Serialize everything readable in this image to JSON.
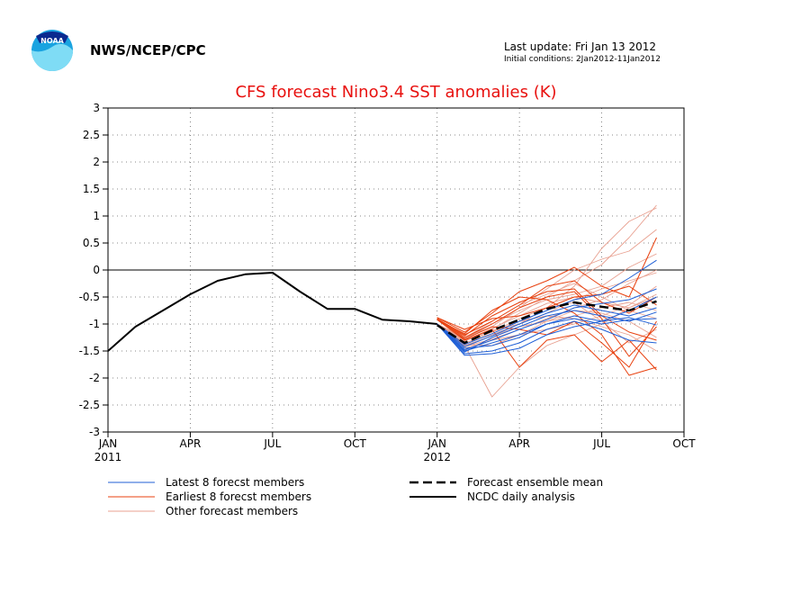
{
  "header": {
    "org": "NWS/NCEP/CPC",
    "last_update": "Last update: Fri Jan 13 2012",
    "initial_conditions": "Initial conditions: 2Jan2012-11Jan2012",
    "logo_text": "NOAA"
  },
  "chart_data": {
    "type": "line",
    "title": "CFS forecast Nino3.4 SST anomalies (K)",
    "xlabel": "",
    "ylabel": "",
    "ylim": [
      -3,
      3
    ],
    "xlim": [
      "2011-01",
      "2012-10"
    ],
    "y_ticks": [
      "3",
      "2.5",
      "2",
      "1.5",
      "1",
      "0.5",
      "0",
      "-0.5",
      "-1",
      "-1.5",
      "-2",
      "-2.5",
      "-3"
    ],
    "y_tick_values": [
      3,
      2.5,
      2,
      1.5,
      1,
      0.5,
      0,
      -0.5,
      -1,
      -1.5,
      -2,
      -2.5,
      -3
    ],
    "x_ticks": [
      {
        "label": "JAN",
        "year": "2011",
        "month": "2011-01"
      },
      {
        "label": "APR",
        "year": "",
        "month": "2011-04"
      },
      {
        "label": "JUL",
        "year": "",
        "month": "2011-07"
      },
      {
        "label": "OCT",
        "year": "",
        "month": "2011-10"
      },
      {
        "label": "JAN",
        "year": "2012",
        "month": "2012-01"
      },
      {
        "label": "APR",
        "year": "",
        "month": "2012-04"
      },
      {
        "label": "JUL",
        "year": "",
        "month": "2012-07"
      },
      {
        "label": "OCT",
        "year": "",
        "month": "2012-10"
      }
    ],
    "grid": true,
    "zero_line": true,
    "legend": [
      {
        "label": "Latest 8 forecst members",
        "color": "#1f5fd6",
        "style": "thin"
      },
      {
        "label": "Earliest 8 forecst members",
        "color": "#e8410f",
        "style": "thin"
      },
      {
        "label": "Other forecast members",
        "color": "#e8a090",
        "style": "thin"
      },
      {
        "label": "Forecast ensemble mean",
        "color": "#000000",
        "style": "dashed"
      },
      {
        "label": "NCDC daily analysis",
        "color": "#000000",
        "style": "solid"
      }
    ],
    "ncdc_daily_analysis": {
      "x": [
        "2011-01",
        "2011-02",
        "2011-03",
        "2011-04",
        "2011-05",
        "2011-06",
        "2011-07",
        "2011-08",
        "2011-09",
        "2011-10",
        "2011-11",
        "2011-12",
        "2012-01"
      ],
      "y": [
        -1.5,
        -1.05,
        -0.75,
        -0.45,
        -0.2,
        -0.08,
        -0.05,
        -0.4,
        -0.72,
        -0.72,
        -0.92,
        -0.95,
        -1.0
      ]
    },
    "forecast_ensemble_mean": {
      "x": [
        "2012-01",
        "2012-02",
        "2012-03",
        "2012-04",
        "2012-05",
        "2012-06",
        "2012-07",
        "2012-08",
        "2012-09"
      ],
      "y": [
        -1.02,
        -1.35,
        -1.12,
        -0.92,
        -0.72,
        -0.6,
        -0.68,
        -0.75,
        -0.58
      ]
    },
    "latest_8_members": [
      [
        -1.0,
        -1.52,
        -1.25,
        -1.05,
        -0.85,
        -0.75,
        -0.85,
        -0.95,
        -0.78
      ],
      [
        -1.0,
        -1.45,
        -1.4,
        -1.25,
        -1.0,
        -0.85,
        -0.95,
        -0.75,
        -0.5
      ],
      [
        -1.0,
        -1.58,
        -1.55,
        -1.45,
        -1.2,
        -1.05,
        -0.95,
        -0.88,
        -1.02
      ],
      [
        -1.0,
        -1.38,
        -1.18,
        -0.95,
        -0.75,
        -0.55,
        -0.45,
        -0.15,
        0.18
      ],
      [
        -1.0,
        -1.48,
        -1.3,
        -1.1,
        -0.92,
        -0.7,
        -0.62,
        -0.55,
        -0.35
      ],
      [
        -1.0,
        -1.55,
        -1.5,
        -1.35,
        -1.1,
        -0.95,
        -1.1,
        -1.3,
        -1.35
      ],
      [
        -1.0,
        -1.42,
        -1.22,
        -1.0,
        -0.8,
        -0.65,
        -0.75,
        -0.85,
        -0.7
      ],
      [
        -1.0,
        -1.5,
        -1.35,
        -1.2,
        -1.0,
        -0.9,
        -1.0,
        -0.92,
        -0.9
      ]
    ],
    "earliest_8_members": [
      [
        -0.88,
        -1.15,
        -0.8,
        -0.4,
        -0.2,
        0.05,
        -0.3,
        -0.5,
        0.6
      ],
      [
        -0.9,
        -1.25,
        -1.0,
        -0.7,
        -0.5,
        -0.4,
        -0.9,
        -1.6,
        -1.05
      ],
      [
        -0.9,
        -1.2,
        -0.95,
        -0.65,
        -0.3,
        -0.2,
        -0.6,
        -0.8,
        -0.5
      ],
      [
        -0.92,
        -1.3,
        -1.1,
        -1.8,
        -1.3,
        -1.2,
        -1.7,
        -1.3,
        -1.85
      ],
      [
        -0.92,
        -1.18,
        -0.75,
        -0.5,
        -0.55,
        -0.8,
        -1.2,
        -1.95,
        -1.8
      ],
      [
        -0.88,
        -1.1,
        -0.9,
        -0.85,
        -0.7,
        -0.5,
        -0.45,
        -0.3,
        -0.65
      ],
      [
        -0.9,
        -1.28,
        -1.05,
        -1.1,
        -1.2,
        -0.95,
        -1.35,
        -1.8,
        -0.95
      ],
      [
        -0.92,
        -1.22,
        -0.85,
        -0.6,
        -0.4,
        -0.35,
        -0.85,
        -1.15,
        -1.3
      ]
    ],
    "other_members": [
      [
        -1.0,
        -1.3,
        -1.1,
        -0.8,
        -0.5,
        -0.2,
        0.1,
        0.6,
        1.2
      ],
      [
        -1.0,
        -1.35,
        -1.2,
        -1.0,
        -0.7,
        -0.3,
        0.4,
        0.9,
        1.15
      ],
      [
        -1.0,
        -1.25,
        -1.05,
        -0.7,
        -0.35,
        0.0,
        0.2,
        0.35,
        0.75
      ],
      [
        -1.0,
        -1.4,
        -2.35,
        -1.8,
        -1.4,
        -1.2,
        -1.0,
        -0.7,
        -0.5
      ],
      [
        -1.0,
        -1.38,
        -1.4,
        -1.2,
        -0.95,
        -0.75,
        -0.8,
        -0.95,
        -1.25
      ],
      [
        -1.0,
        -1.3,
        -1.15,
        -0.95,
        -0.85,
        -0.9,
        -1.05,
        -1.2,
        -1.5
      ],
      [
        -1.0,
        -1.42,
        -1.28,
        -1.1,
        -0.9,
        -0.7,
        -0.55,
        -0.25,
        0.0
      ],
      [
        -1.0,
        -1.32,
        -1.08,
        -0.85,
        -0.62,
        -0.5,
        -0.6,
        -0.7,
        -0.45
      ],
      [
        -1.0,
        -1.28,
        -1.0,
        -0.75,
        -0.55,
        -0.45,
        -0.3,
        0.05,
        0.3
      ],
      [
        -1.0,
        -1.45,
        -1.3,
        -1.2,
        -1.1,
        -1.0,
        -0.85,
        -0.65,
        -0.3
      ],
      [
        -1.0,
        -1.36,
        -1.15,
        -0.9,
        -0.7,
        -0.6,
        -0.95,
        -1.35,
        -1.1
      ],
      [
        -1.0,
        -1.3,
        -1.12,
        -1.0,
        -0.8,
        -0.55,
        -0.35,
        -0.2,
        -0.05
      ],
      [
        -1.0,
        -1.26,
        -0.95,
        -0.65,
        -0.45,
        -0.25,
        -0.5,
        -0.75,
        -0.9
      ],
      [
        -1.0,
        -1.4,
        -1.22,
        -1.05,
        -0.95,
        -0.85,
        -0.7,
        -0.6,
        -0.75
      ]
    ]
  }
}
